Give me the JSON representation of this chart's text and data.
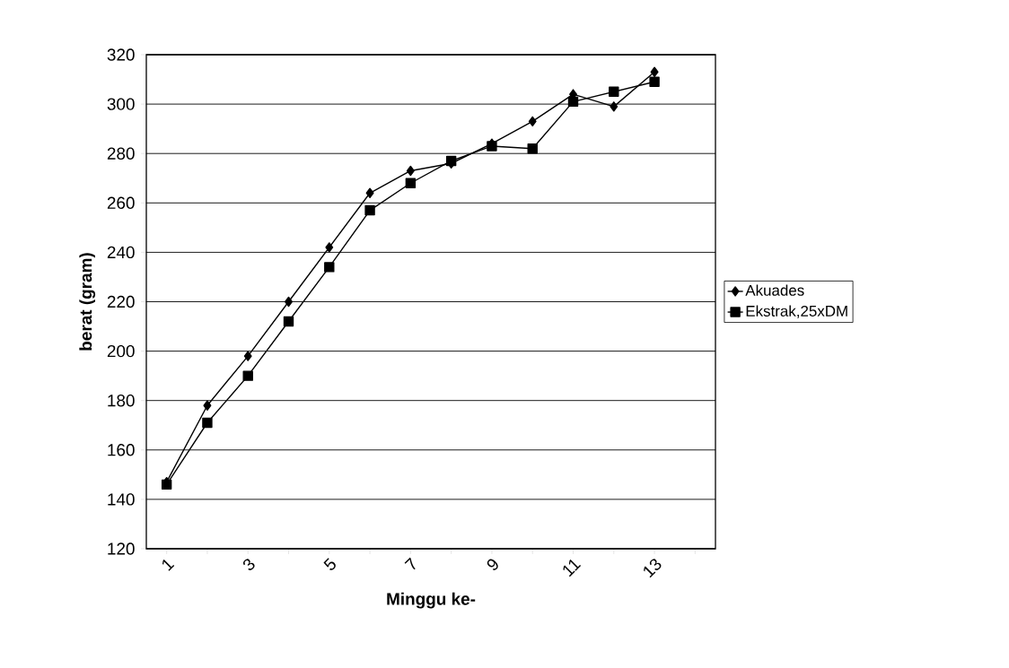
{
  "chart_data": {
    "type": "line",
    "xlabel": "Minggu ke-",
    "ylabel": "berat (gram)",
    "categories": [
      "1",
      null,
      "3",
      null,
      "5",
      null,
      "7",
      null,
      "9",
      null,
      "11",
      null,
      "13",
      null
    ],
    "series": [
      {
        "name": "Akuades",
        "color": "#000000",
        "marker": "diamond",
        "values": [
          147,
          178,
          198,
          220,
          242,
          264,
          273,
          276,
          284,
          293,
          304,
          299,
          313,
          null
        ]
      },
      {
        "name": "Ekstrak,25xDM",
        "color": "#000000",
        "marker": "square",
        "values": [
          146,
          171,
          190,
          212,
          234,
          257,
          268,
          277,
          283,
          282,
          301,
          305,
          309,
          null
        ]
      }
    ],
    "ylim": [
      120,
      320
    ],
    "yticks": [
      120,
      140,
      160,
      180,
      200,
      220,
      240,
      260,
      280,
      300,
      320
    ],
    "grid": "y",
    "legend": "right",
    "line_style": "solid"
  }
}
